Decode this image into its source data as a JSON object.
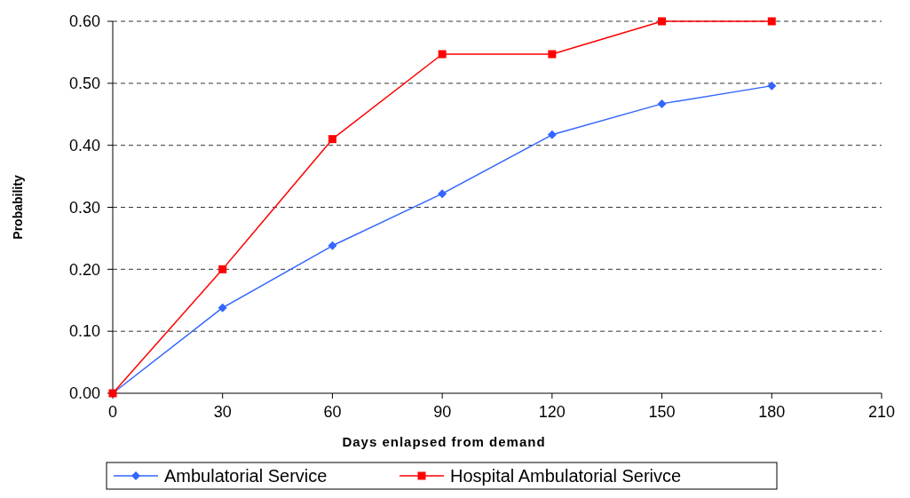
{
  "chart_data": {
    "type": "line",
    "xlabel": "Days enlapsed from demand",
    "ylabel": "Probability",
    "x": [
      0,
      30,
      60,
      90,
      120,
      150,
      180
    ],
    "series": [
      {
        "name": "Ambulatorial Service",
        "color": "#3366ff",
        "marker": "diamond",
        "values": [
          0,
          0.138,
          0.238,
          0.322,
          0.417,
          0.467,
          0.496
        ]
      },
      {
        "name": "Hospital Ambulatorial Serivce",
        "color": "#ff0000",
        "marker": "square",
        "values": [
          0,
          0.2,
          0.41,
          0.547,
          0.547,
          0.6,
          0.6
        ]
      }
    ],
    "xlim": [
      0,
      210
    ],
    "xticks": [
      0,
      30,
      60,
      90,
      120,
      150,
      180,
      210
    ],
    "ylim": [
      0,
      0.6
    ],
    "yticks": [
      {
        "value": 0,
        "label": "0.00"
      },
      {
        "value": 0.1,
        "label": "0.10"
      },
      {
        "value": 0.2,
        "label": "0.20"
      },
      {
        "value": 0.3,
        "label": "0.30"
      },
      {
        "value": 0.4,
        "label": "0.40"
      },
      {
        "value": 0.5,
        "label": "0.50"
      },
      {
        "value": 0.6,
        "label": "0.60"
      }
    ],
    "grid": "y",
    "legend": "bottom",
    "line_style": "solid"
  }
}
